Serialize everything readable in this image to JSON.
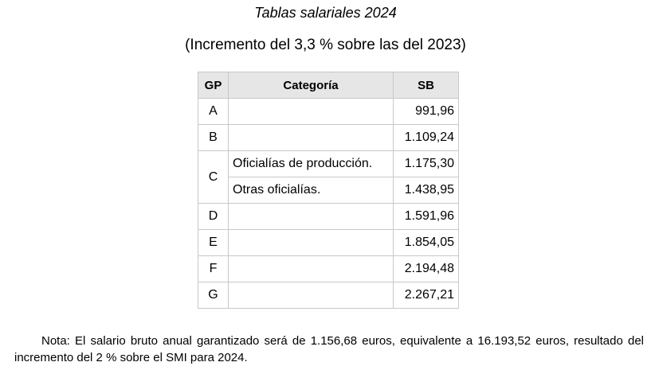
{
  "document": {
    "title": "Tablas salariales 2024",
    "subtitle": "(Incremento del 3,3 % sobre las del 2023)"
  },
  "table": {
    "headers": [
      "GP",
      "Categoría",
      "SB"
    ],
    "rows": [
      {
        "gp": "A",
        "categoria": "",
        "sb": "991,96"
      },
      {
        "gp": "B",
        "categoria": "",
        "sb": "1.109,24"
      },
      {
        "gp": "C",
        "categoria": "Oficialías de producción.",
        "sb": "1.175,30"
      },
      {
        "gp": "",
        "categoria": "Otras oficialías.",
        "sb": "1.438,95"
      },
      {
        "gp": "D",
        "categoria": "",
        "sb": "1.591,96"
      },
      {
        "gp": "E",
        "categoria": "",
        "sb": "1.854,05"
      },
      {
        "gp": "F",
        "categoria": "",
        "sb": "2.194,48"
      },
      {
        "gp": "G",
        "categoria": "",
        "sb": "2.267,21"
      }
    ]
  },
  "note": "Nota: El salario bruto anual garantizado será de 1.156,68 euros, equivalente a 16.193,52 euros, resultado del incremento del 2 % sobre el SMI para 2024."
}
